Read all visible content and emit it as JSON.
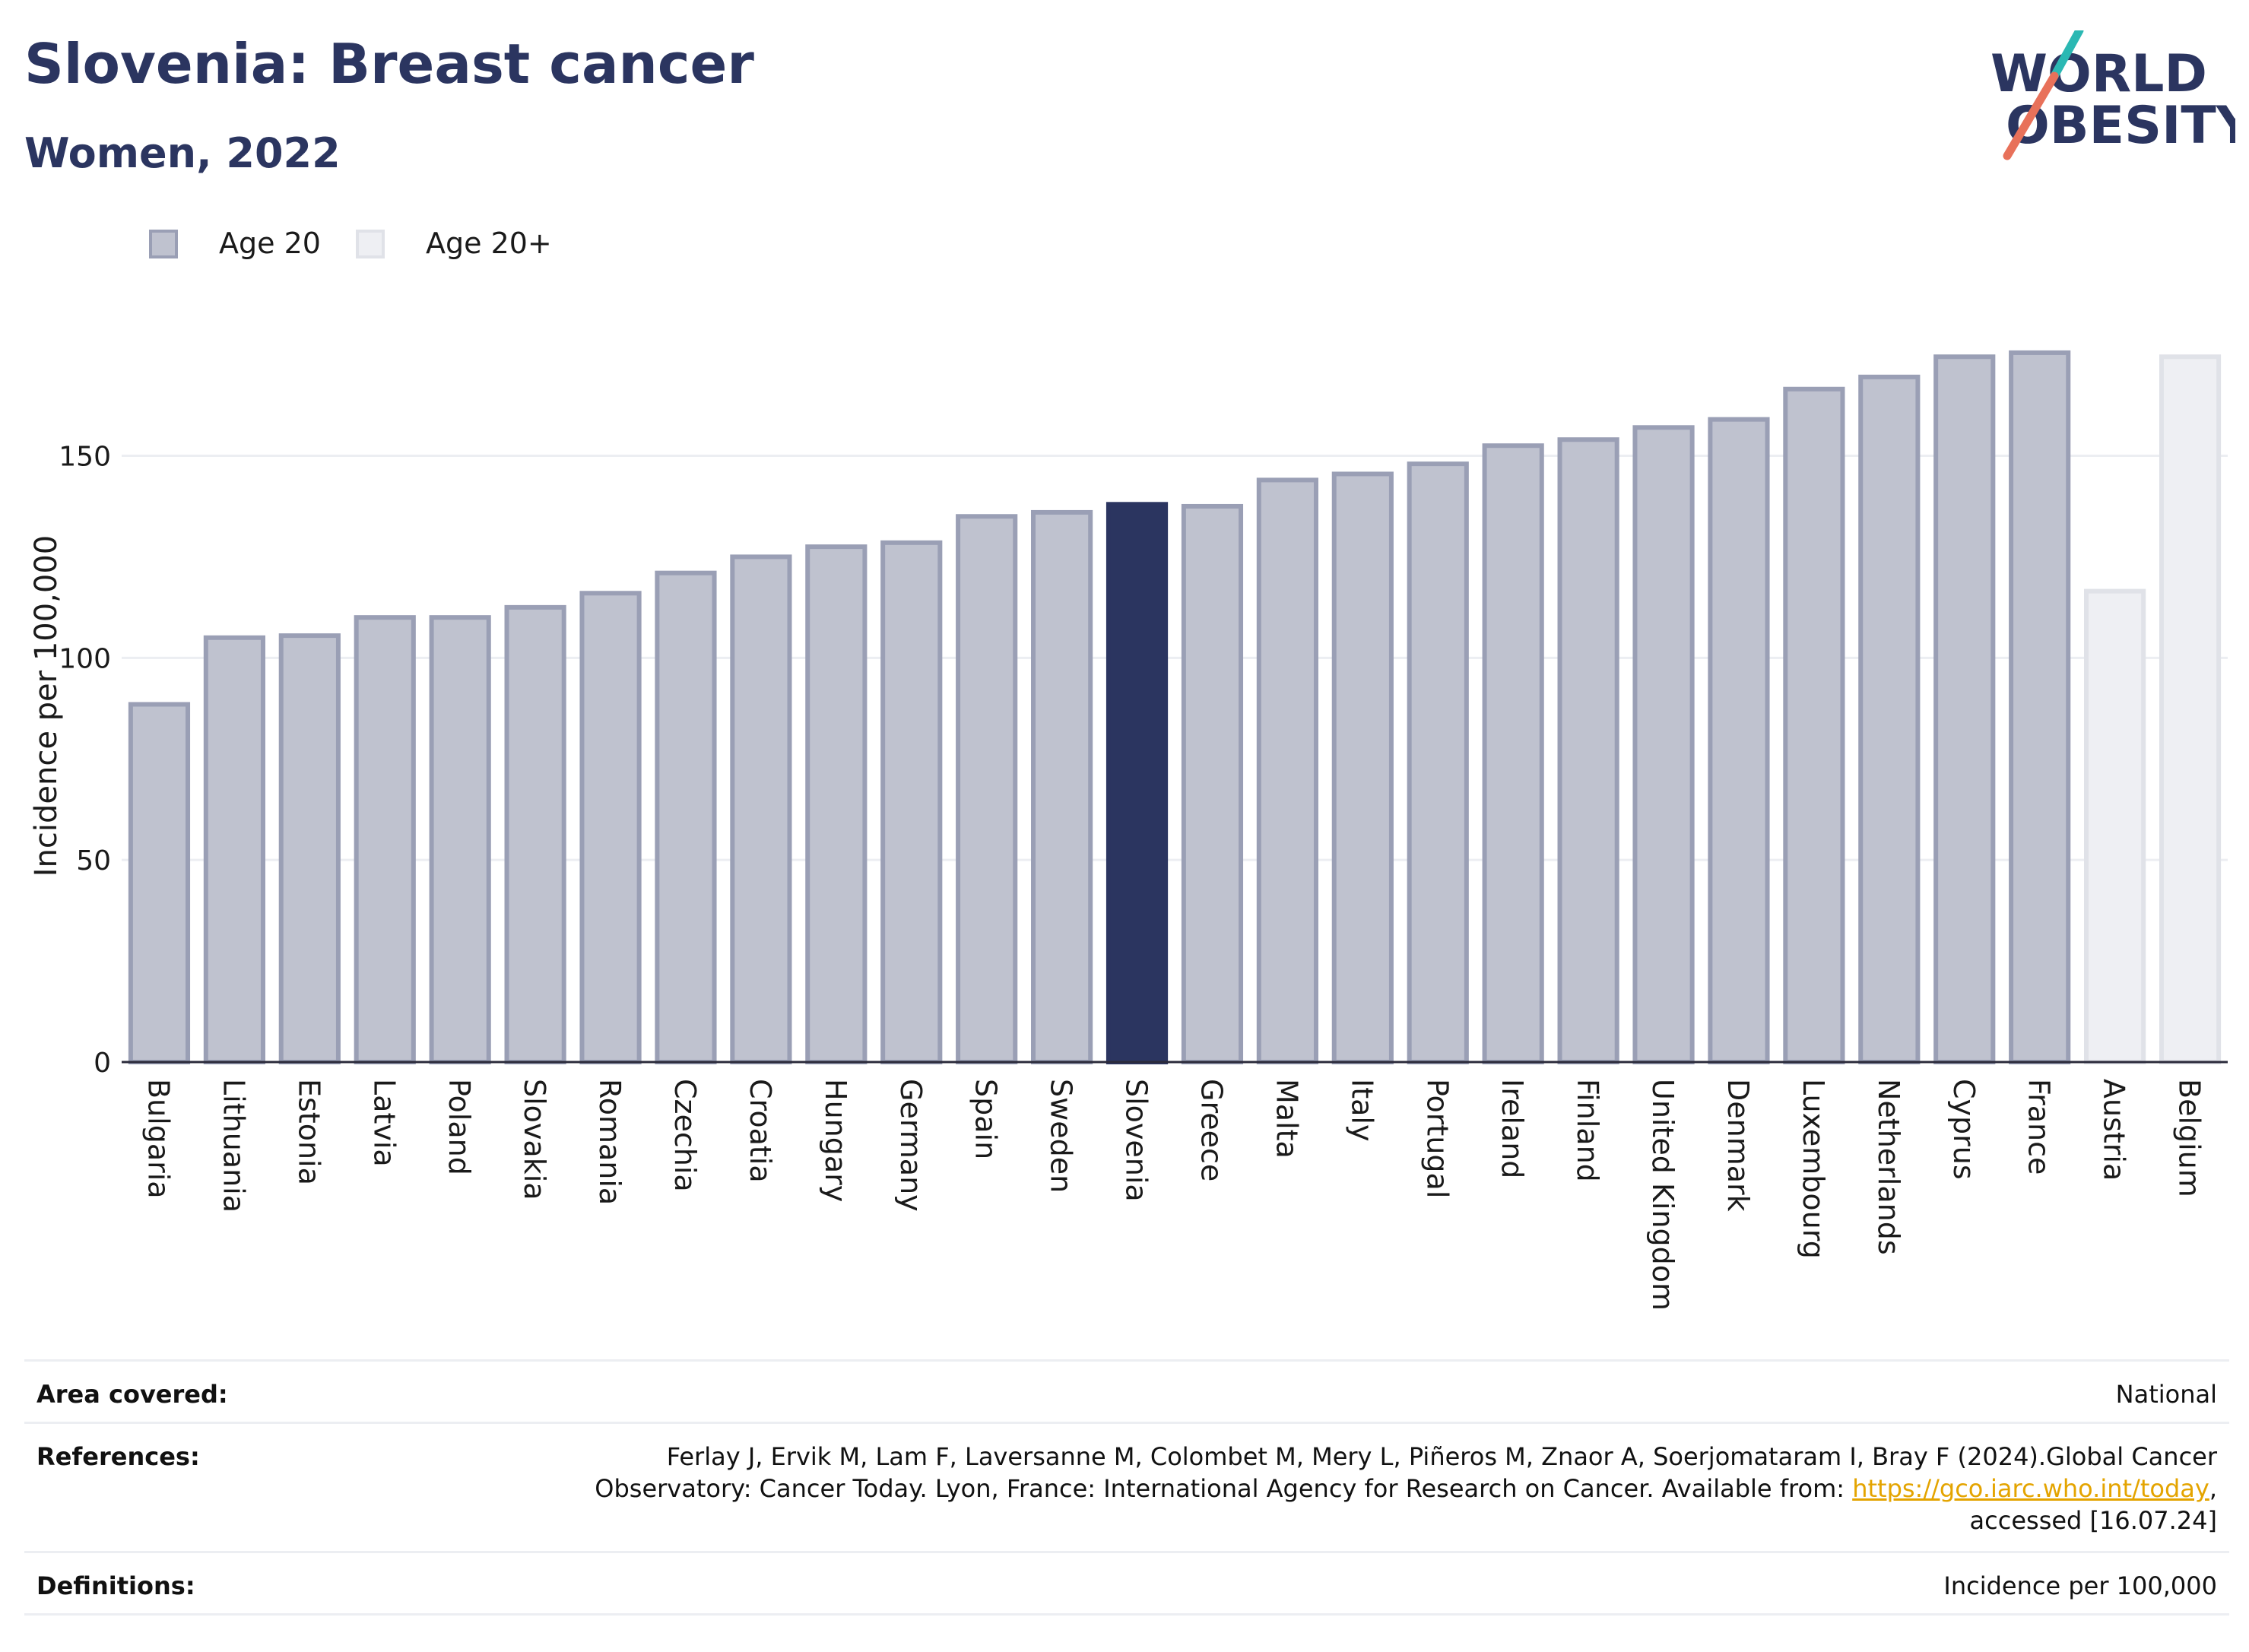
{
  "header": {
    "title": "Slovenia: Breast cancer",
    "subtitle": "Women, 2022"
  },
  "logo": {
    "line1": "WORLD",
    "line2": "OBESITY"
  },
  "colors": {
    "highlight": "#2b3560",
    "age20_fill": "#bfc2cf",
    "age20_stroke": "#9a9fb5",
    "age20plus_fill": "#eeeff3",
    "age20plus_stroke": "#e0e2e8",
    "logo_teal": "#2bb8b3",
    "logo_coral": "#e8715a"
  },
  "chart_data": {
    "type": "bar",
    "ylabel": "Incidence per 100,000",
    "ylim": [
      0,
      180
    ],
    "yticks": [
      0,
      50,
      100,
      150
    ],
    "grid": true,
    "legend": {
      "placement": "top-left",
      "entries": [
        {
          "name": "Age 20",
          "key": "age20"
        },
        {
          "name": "Age 20+",
          "key": "age20plus"
        }
      ]
    },
    "highlight_category": "Slovenia",
    "categories": [
      "Bulgaria",
      "Lithuania",
      "Estonia",
      "Latvia",
      "Poland",
      "Slovakia",
      "Romania",
      "Czechia",
      "Croatia",
      "Hungary",
      "Germany",
      "Spain",
      "Sweden",
      "Slovenia",
      "Greece",
      "Malta",
      "Italy",
      "Portugal",
      "Ireland",
      "Finland",
      "United Kingdom",
      "Denmark",
      "Luxembourg",
      "Netherlands",
      "Cyprus",
      "France",
      "Austria",
      "Belgium"
    ],
    "values": [
      88.5,
      105,
      105.5,
      110,
      110,
      112.5,
      116,
      121,
      125,
      127.5,
      128.5,
      135,
      136,
      138,
      137.5,
      144,
      145.5,
      148,
      152.5,
      154,
      157,
      159,
      166.5,
      169.5,
      174.5,
      175.5,
      116.5,
      174.5
    ],
    "groups": [
      "age20",
      "age20",
      "age20",
      "age20",
      "age20",
      "age20",
      "age20",
      "age20",
      "age20",
      "age20",
      "age20",
      "age20",
      "age20",
      "age20",
      "age20",
      "age20",
      "age20",
      "age20",
      "age20",
      "age20",
      "age20",
      "age20",
      "age20",
      "age20",
      "age20",
      "age20",
      "age20plus",
      "age20plus"
    ]
  },
  "meta": {
    "area_label": "Area covered:",
    "area_value": "National",
    "ref_label": "References:",
    "ref_line1": "Ferlay J, Ervik M, Lam F, Laversanne M, Colombet M, Mery L, Piñeros M, Znaor A, Soerjomataram I, Bray F (2024).Global Cancer",
    "ref_line2_pre": "Observatory: Cancer Today. Lyon, France: International Agency for Research on Cancer. Available from: ",
    "ref_link": "https://gco.iarc.who.int/today",
    "ref_line2_post": ",",
    "ref_line3": "accessed [16.07.24]",
    "def_label": "Definitions:",
    "def_value": "Incidence per 100,000"
  }
}
